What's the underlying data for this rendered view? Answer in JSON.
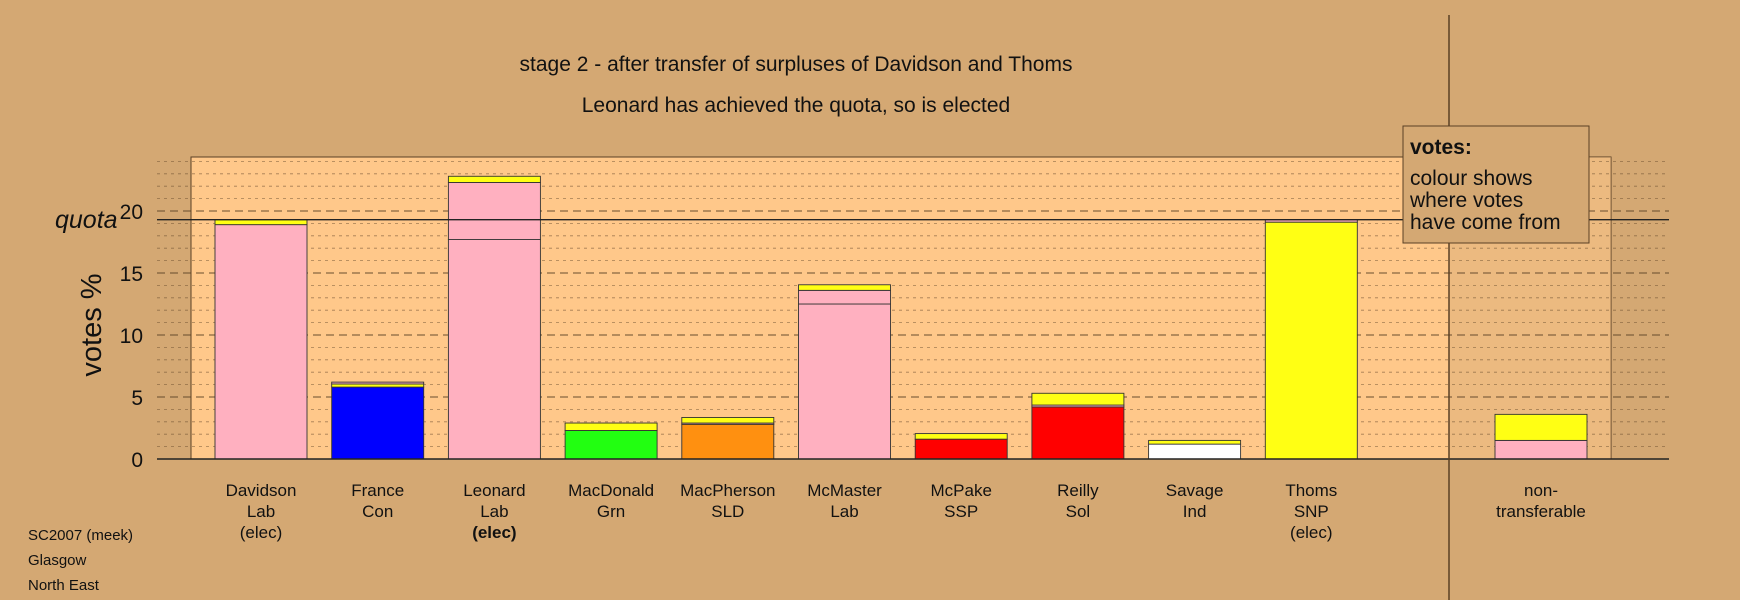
{
  "chart_data": {
    "type": "bar",
    "title": "stage 2 - after transfer of surpluses of Davidson and Thoms",
    "subtitle": "Leonard has achieved the quota, so is elected",
    "ylabel": "votes %",
    "ylim": [
      0,
      24.5
    ],
    "yticks": [
      "0",
      "5",
      "10",
      "15",
      "20"
    ],
    "quota_label": "quota",
    "quota_value": 19.3,
    "grid": true,
    "legend": {
      "title": "votes:",
      "lines": [
        "colour shows",
        "where votes",
        "have come from"
      ],
      "position": "top-right"
    },
    "colors": {
      "Lab": "#ffb0c0",
      "SNP": "#ffff14",
      "Con": "#0000ff",
      "Grn": "#22ff11",
      "SLD": "#ff9010",
      "Red": "#ff0000",
      "Ind": "#ffffff"
    },
    "candidates": [
      {
        "line1": "Davidson",
        "line2": "Lab",
        "line3": "(elec)",
        "bold3": false,
        "segments": [
          {
            "source": "Lab",
            "value": 18.9
          },
          {
            "source": "SNP",
            "value": 0.4
          }
        ]
      },
      {
        "line1": "France",
        "line2": "Con",
        "line3": "",
        "bold3": false,
        "segments": [
          {
            "source": "Con",
            "value": 5.8
          },
          {
            "source": "SNP",
            "value": 0.25
          },
          {
            "source": "Lab",
            "value": 0.15
          }
        ]
      },
      {
        "line1": "Leonard",
        "line2": "Lab",
        "line3": "(elec)",
        "bold3": true,
        "segments": [
          {
            "source": "Lab",
            "value": 17.7
          },
          {
            "source": "Lab",
            "value": 4.6
          },
          {
            "source": "SNP",
            "value": 0.5
          }
        ]
      },
      {
        "line1": "MacDonald",
        "line2": "Grn",
        "line3": "",
        "bold3": false,
        "segments": [
          {
            "source": "Grn",
            "value": 2.3
          },
          {
            "source": "SNP",
            "value": 0.6
          }
        ]
      },
      {
        "line1": "MacPherson",
        "line2": "SLD",
        "line3": "",
        "bold3": false,
        "segments": [
          {
            "source": "SLD",
            "value": 2.8
          },
          {
            "source": "Lab",
            "value": 0.1
          },
          {
            "source": "SNP",
            "value": 0.45
          }
        ]
      },
      {
        "line1": "McMaster",
        "line2": "Lab",
        "line3": "",
        "bold3": false,
        "segments": [
          {
            "source": "Lab",
            "value": 12.5
          },
          {
            "source": "Lab",
            "value": 1.1
          },
          {
            "source": "SNP",
            "value": 0.45
          }
        ]
      },
      {
        "line1": "McPake",
        "line2": "SSP",
        "line3": "",
        "bold3": false,
        "segments": [
          {
            "source": "Red",
            "value": 1.6
          },
          {
            "source": "SNP",
            "value": 0.45
          }
        ]
      },
      {
        "line1": "Reilly",
        "line2": "Sol",
        "line3": "",
        "bold3": false,
        "segments": [
          {
            "source": "Red",
            "value": 4.2
          },
          {
            "source": "Lab",
            "value": 0.15
          },
          {
            "source": "SNP",
            "value": 0.95
          }
        ]
      },
      {
        "line1": "Savage",
        "line2": "Ind",
        "line3": "",
        "bold3": false,
        "segments": [
          {
            "source": "Ind",
            "value": 1.2
          },
          {
            "source": "SNP",
            "value": 0.3
          }
        ]
      },
      {
        "line1": "Thoms",
        "line2": "SNP",
        "line3": "(elec)",
        "bold3": false,
        "segments": [
          {
            "source": "SNP",
            "value": 19.1
          },
          {
            "source": "Lab",
            "value": 0.2
          }
        ]
      }
    ],
    "nontransferable": {
      "line1": "non-",
      "line2": "transferable",
      "segments": [
        {
          "source": "Lab",
          "value": 1.5
        },
        {
          "source": "SNP",
          "value": 2.1
        }
      ]
    }
  },
  "footer": [
    "SC2007 (meek)",
    "Glasgow",
    "North East"
  ]
}
